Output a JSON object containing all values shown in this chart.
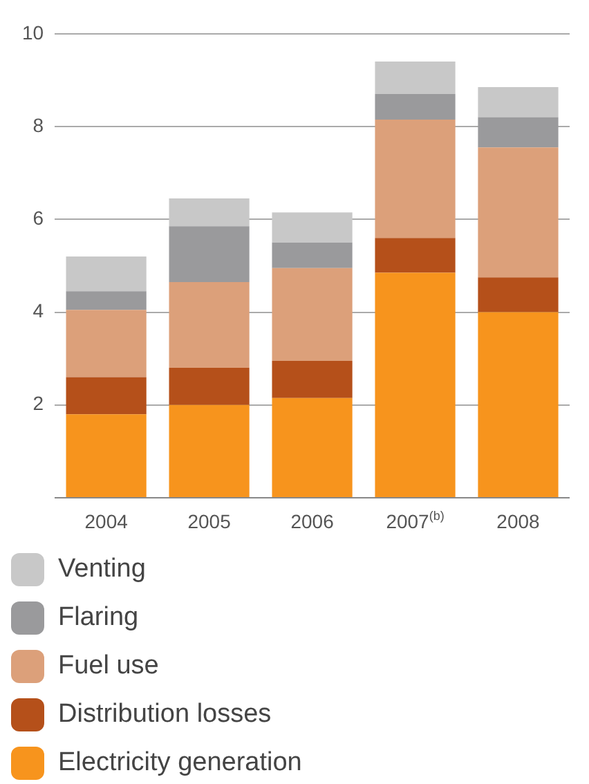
{
  "chart_data": {
    "type": "bar",
    "stacked": true,
    "categories": [
      "2004",
      "2005",
      "2006",
      "2007$^{(b)}$",
      "2008"
    ],
    "series": [
      {
        "name": "Electricity generation",
        "color": "#f7941d",
        "values": [
          1.8,
          2.0,
          2.15,
          4.85,
          4.0
        ]
      },
      {
        "name": "Distribution losses",
        "color": "#b5501a",
        "values": [
          0.8,
          0.8,
          0.8,
          0.75,
          0.75
        ]
      },
      {
        "name": "Fuel use",
        "color": "#dca07a",
        "values": [
          1.45,
          1.85,
          2.0,
          2.55,
          2.8
        ]
      },
      {
        "name": "Flaring",
        "color": "#9a9a9c",
        "values": [
          0.4,
          1.2,
          0.55,
          0.55,
          0.65
        ]
      },
      {
        "name": "Venting",
        "color": "#c8c8c8",
        "values": [
          0.75,
          0.6,
          0.65,
          0.7,
          0.65
        ]
      }
    ],
    "ylim": [
      0,
      10
    ],
    "yticks": [
      2,
      4,
      6,
      8,
      10
    ],
    "grid": "y",
    "legend": "bottom"
  }
}
